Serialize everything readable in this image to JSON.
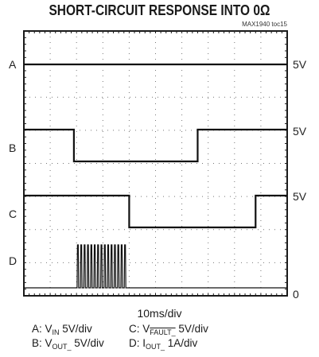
{
  "title": "SHORT-CIRCUIT RESPONSE INTO 0Ω",
  "figure_id": "MAX1940 toc15",
  "x_scale": "10ms/div",
  "legend": [
    {
      "channel": "A: V",
      "sub": "IN",
      "scale": " 5V/div"
    },
    {
      "channel": "B: V",
      "sub": "OUT_",
      "scale": " 5V/div"
    },
    {
      "channel": "C: V",
      "sub": "FAULT_",
      "scale": " 5V/div"
    },
    {
      "channel": "D: I",
      "sub": "OUT_",
      "scale": " 1A/div"
    }
  ],
  "chart_data": {
    "type": "line",
    "title": "SHORT-CIRCUIT RESPONSE INTO 0Ω",
    "x_axis": {
      "scale": "10ms/div",
      "divisions": 10,
      "range": [
        0,
        100
      ],
      "unit": "ms"
    },
    "y_axis": {
      "divisions": 8
    },
    "grid": true,
    "series": [
      {
        "name": "A",
        "label": "VIN",
        "scale": "5V/div",
        "right_label": "5V",
        "points": [
          [
            0,
            1
          ],
          [
            100,
            1
          ]
        ]
      },
      {
        "name": "B",
        "label": "VOUT_",
        "scale": "5V/div",
        "right_label": "5V",
        "points": [
          [
            0,
            1
          ],
          [
            19,
            1
          ],
          [
            19,
            0
          ],
          [
            66,
            0
          ],
          [
            66,
            1
          ],
          [
            100,
            1
          ]
        ]
      },
      {
        "name": "C",
        "label": "VFAULT_",
        "scale": "5V/div",
        "right_label": "5V",
        "points": [
          [
            0,
            1
          ],
          [
            40,
            1
          ],
          [
            40,
            0
          ],
          [
            88,
            0
          ],
          [
            88,
            1
          ],
          [
            100,
            1
          ]
        ]
      },
      {
        "name": "D",
        "label": "IOUT_",
        "scale": "1A/div",
        "right_label": "0",
        "points": [
          [
            0,
            0
          ],
          [
            19,
            0
          ],
          [
            20,
            1.35
          ],
          [
            40,
            1.35
          ],
          [
            40,
            0
          ],
          [
            100,
            0
          ]
        ],
        "note": "pulsed current between 19 ms and 40 ms"
      }
    ]
  }
}
